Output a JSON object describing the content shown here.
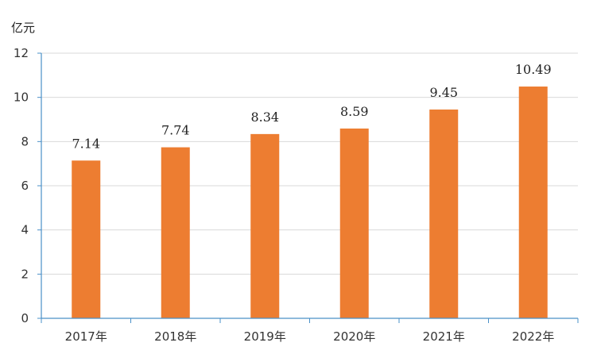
{
  "chart_data": {
    "type": "bar",
    "unit": "亿元",
    "categories": [
      "2017年",
      "2018年",
      "2019年",
      "2020年",
      "2021年",
      "2022年"
    ],
    "values": [
      7.14,
      7.74,
      8.34,
      8.59,
      9.45,
      10.49
    ],
    "value_labels": [
      "7.14",
      "7.74",
      "8.34",
      "8.59",
      "9.45",
      "10.49"
    ],
    "ylim": [
      0,
      12
    ],
    "yticks": [
      0,
      2,
      4,
      6,
      8,
      10,
      12
    ],
    "grid": true,
    "legend": "none",
    "colors": {
      "bar": "#ED7D31",
      "grid": "#D9D9D9",
      "axis": "#4A90C8"
    }
  }
}
